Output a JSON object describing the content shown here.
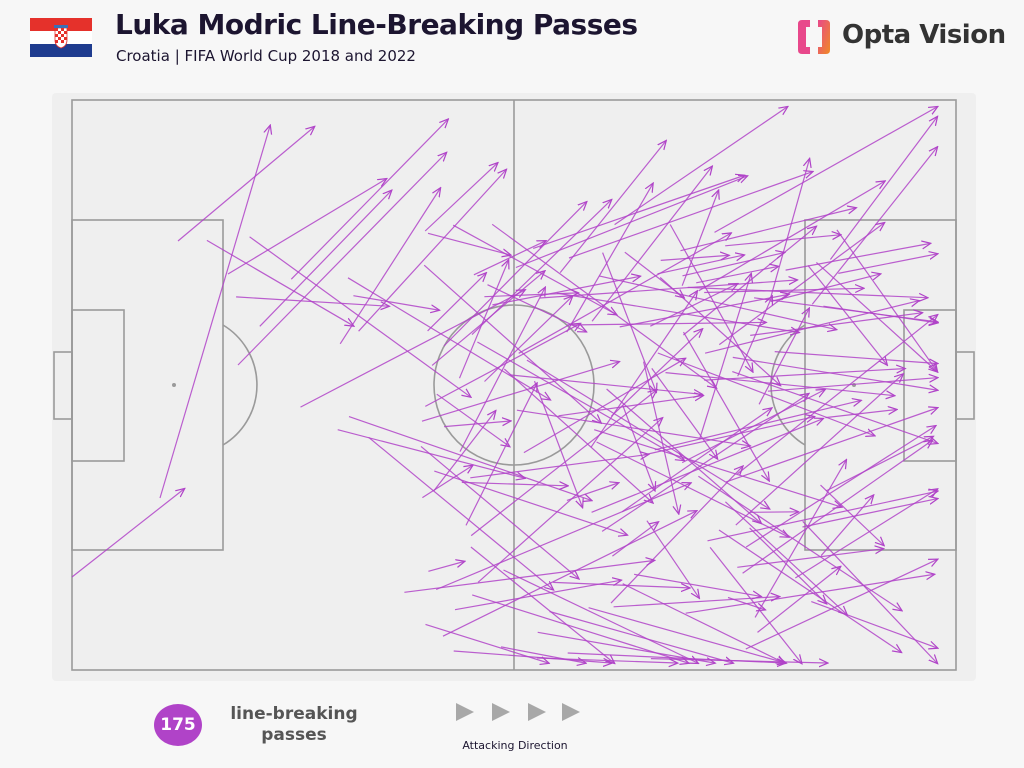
{
  "header": {
    "title": "Luka Modric Line-Breaking Passes",
    "subtitle": "Croatia | FIFA World Cup 2018 and 2022",
    "flag_icon": "croatia-flag-icon"
  },
  "brand": {
    "name": "Opta Vision",
    "logo_icon": "opta-logo-icon",
    "logo_colors": [
      "#e8488b",
      "#f08a24"
    ]
  },
  "pitch": {
    "background": "#f3f3f3",
    "line_color": "#9a9a9a",
    "pass_color": "#b043c8"
  },
  "legend": {
    "count": "175",
    "label_line1": "line-breaking",
    "label_line2": "passes",
    "badge_color": "#b043c8"
  },
  "direction": {
    "label": "Attacking Direction",
    "arrow_icon": "play-triangle-icon",
    "arrow_color": "#a8a8a8"
  }
}
